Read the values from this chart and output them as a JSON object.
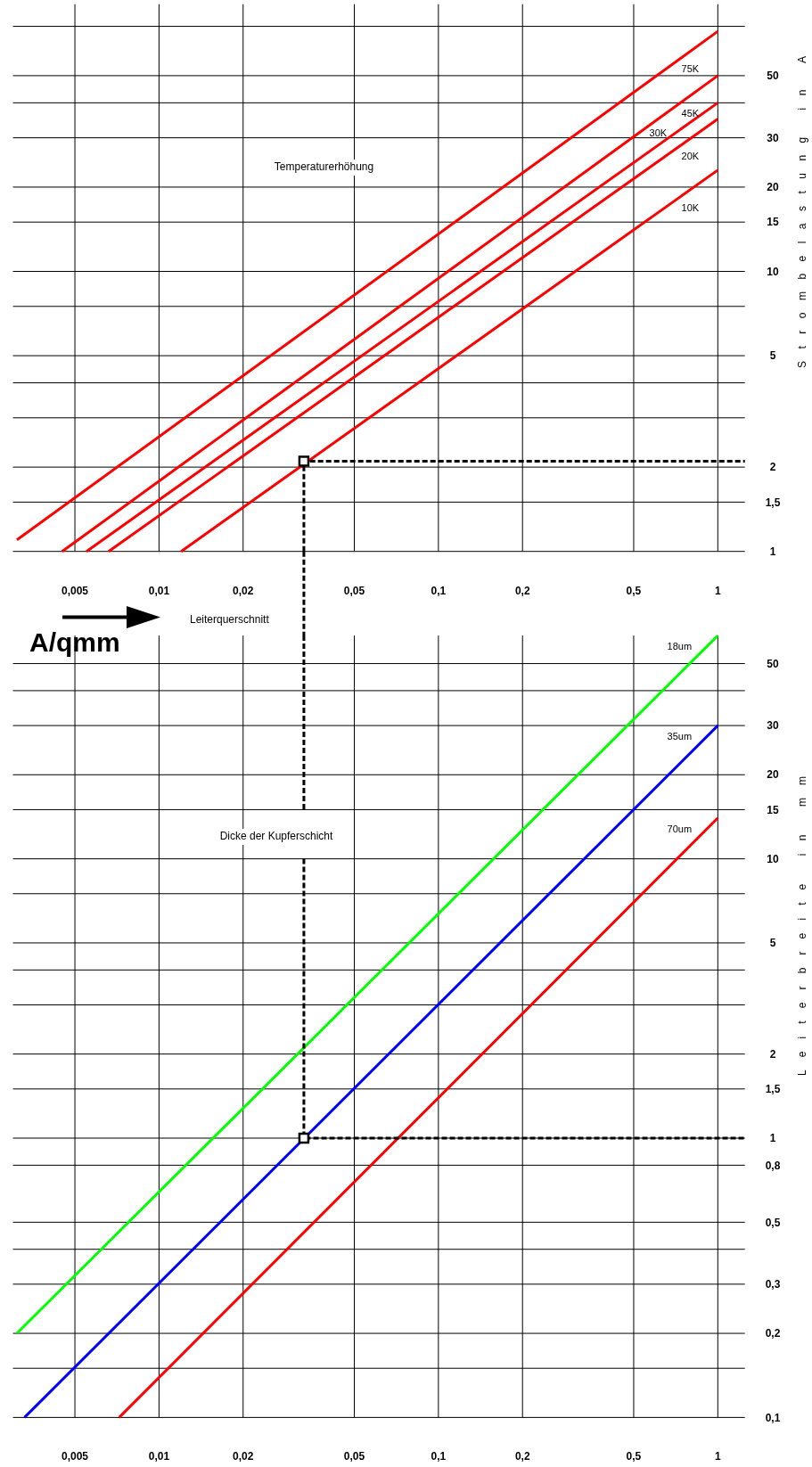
{
  "chart_data": [
    {
      "type": "line",
      "xlabel": "Leiterquerschnitt",
      "ylabel": "Strombelastung in A",
      "annotations": [
        "Temperaturerhöhung",
        "A/qmm"
      ],
      "log": "xy",
      "grid": true,
      "xlim": [
        0.003,
        1.25
      ],
      "ylim": [
        1,
        90
      ],
      "xticks": [
        {
          "value": 0.005,
          "label": "0,005"
        },
        {
          "value": 0.01,
          "label": "0,01"
        },
        {
          "value": 0.02,
          "label": "0,02"
        },
        {
          "value": 0.05,
          "label": "0,05"
        },
        {
          "value": 0.1,
          "label": "0,1"
        },
        {
          "value": 0.2,
          "label": "0,2"
        },
        {
          "value": 0.5,
          "label": "0,5"
        },
        1
      ],
      "yticks": [
        1,
        {
          "value": 1.5,
          "label": "1,5"
        },
        2,
        {
          "value": 3,
          "label": null
        },
        {
          "value": 4,
          "label": null
        },
        5,
        {
          "value": 7.5,
          "label": null
        },
        10,
        15,
        20,
        30,
        {
          "value": 40,
          "label": null
        },
        50,
        {
          "value": 75,
          "label": null
        }
      ],
      "series": [
        {
          "name": "75K",
          "color": "#ff0000",
          "x": [
            0.0031,
            1
          ],
          "values": [
            1.1,
            72
          ]
        },
        {
          "name": "45K",
          "color": "#ff0000",
          "x": [
            0.0045,
            1
          ],
          "values": [
            1,
            50
          ]
        },
        {
          "name": "30K",
          "color": "#ff0000",
          "x": [
            0.0055,
            1
          ],
          "values": [
            1,
            40
          ]
        },
        {
          "name": "20K",
          "color": "#ff0000",
          "x": [
            0.0066,
            1
          ],
          "values": [
            1,
            35
          ]
        },
        {
          "name": "10K",
          "color": "#ff0000",
          "x": [
            0.012,
            1
          ],
          "values": [
            1,
            23
          ]
        },
        {
          "type": "line",
          "color": "#000000",
          "line_style": "dashed",
          "x": [
            0.033,
            0.033,
            1.25
          ],
          "values": [
            1,
            2.1,
            2.1
          ]
        },
        {
          "type": "scatter",
          "color": "#000000",
          "marker": "square",
          "x": [
            0.033
          ],
          "values": [
            2.1
          ]
        }
      ]
    },
    {
      "type": "line",
      "ylabel": "Leiterbreite in mm",
      "annotations": [
        "Dicke der Kupferschicht"
      ],
      "log": "xy",
      "grid": true,
      "xlim": [
        0.003,
        1.25
      ],
      "ylim": [
        0.1,
        63
      ],
      "xticks": [
        {
          "value": 0.005,
          "label": "0,005"
        },
        {
          "value": 0.01,
          "label": "0,01"
        },
        {
          "value": 0.02,
          "label": "0,02"
        },
        {
          "value": 0.05,
          "label": "0,05"
        },
        {
          "value": 0.1,
          "label": "0,1"
        },
        {
          "value": 0.2,
          "label": "0,2"
        },
        {
          "value": 0.5,
          "label": "0,5"
        },
        1
      ],
      "yticks": [
        {
          "value": 0.1,
          "label": "0,1"
        },
        {
          "value": 0.15,
          "label": null
        },
        {
          "value": 0.2,
          "label": "0,2"
        },
        {
          "value": 0.3,
          "label": "0,3"
        },
        {
          "value": 0.4,
          "label": null
        },
        {
          "value": 0.5,
          "label": "0,5"
        },
        {
          "value": 0.8,
          "label": "0,8"
        },
        1,
        {
          "value": 1.5,
          "label": "1,5"
        },
        2,
        {
          "value": 3,
          "label": null
        },
        {
          "value": 4,
          "label": null
        },
        5,
        {
          "value": 7.5,
          "label": null
        },
        10,
        15,
        20,
        30,
        {
          "value": 40,
          "label": null
        },
        50
      ],
      "series": [
        {
          "name": "18um",
          "color": "#00ff00",
          "x": [
            0.0031,
            1
          ],
          "values": [
            0.2,
            63
          ]
        },
        {
          "name": "35um",
          "color": "#0000ff",
          "x": [
            0.0033,
            1
          ],
          "values": [
            0.1,
            30
          ]
        },
        {
          "name": "70um",
          "color": "#ff0000",
          "x": [
            0.0072,
            1
          ],
          "values": [
            0.1,
            14
          ]
        },
        {
          "type": "line",
          "color": "#000000",
          "line_style": "dashed",
          "x": [
            0.033,
            0.033
          ],
          "values": [
            63,
            15
          ]
        },
        {
          "type": "line",
          "color": "#000000",
          "line_style": "dashed",
          "x": [
            0.033,
            0.033,
            1.25
          ],
          "values": [
            10,
            1,
            1
          ]
        },
        {
          "type": "scatter",
          "color": "#000000",
          "marker": "square",
          "x": [
            0.033
          ],
          "values": [
            1
          ]
        }
      ]
    }
  ]
}
